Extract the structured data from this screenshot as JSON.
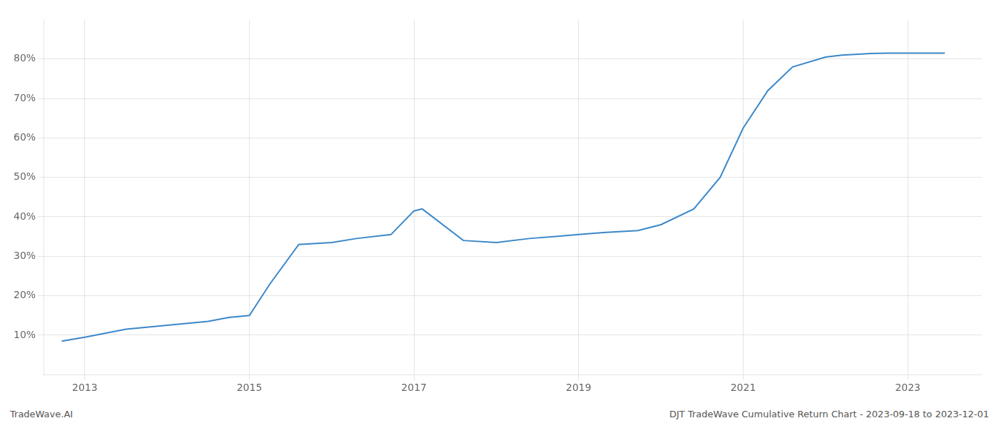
{
  "chart_data": {
    "type": "line",
    "x": [
      2012.72,
      2013.0,
      2013.5,
      2014.0,
      2014.5,
      2014.75,
      2015.0,
      2015.25,
      2015.6,
      2016.0,
      2016.3,
      2016.72,
      2017.0,
      2017.1,
      2017.6,
      2018.0,
      2018.4,
      2018.72,
      2019.0,
      2019.3,
      2019.72,
      2020.0,
      2020.4,
      2020.72,
      2021.0,
      2021.3,
      2021.6,
      2022.0,
      2022.2,
      2022.4,
      2022.55,
      2022.75,
      2023.0,
      2023.45
    ],
    "values": [
      8.5,
      9.5,
      11.5,
      12.5,
      13.5,
      14.5,
      15.0,
      23.0,
      33.0,
      33.5,
      34.5,
      35.5,
      41.5,
      42.0,
      34.0,
      33.5,
      34.5,
      35.0,
      35.5,
      36.0,
      36.5,
      38.0,
      42.0,
      50.0,
      62.5,
      72.0,
      78.0,
      80.5,
      81.0,
      81.2,
      81.4,
      81.5,
      81.5,
      81.5
    ],
    "color": "#3a87c8",
    "xlim": [
      2012.5,
      2023.9
    ],
    "xticks": [
      2013,
      2015,
      2017,
      2019,
      2021,
      2023
    ],
    "ylim": [
      0,
      90
    ],
    "yticks": [
      {
        "value": 10,
        "label": "10%"
      },
      {
        "value": 20,
        "label": "20%"
      },
      {
        "value": 30,
        "label": "30%"
      },
      {
        "value": 40,
        "label": "40%"
      },
      {
        "value": 50,
        "label": "50%"
      },
      {
        "value": 60,
        "label": "60%"
      },
      {
        "value": 70,
        "label": "70%"
      },
      {
        "value": 80,
        "label": "80%"
      }
    ],
    "grid": true,
    "annotations": [
      "TradeWave.AI",
      "DJT TradeWave Cumulative Return Chart - 2023-09-18 to 2023-12-01"
    ]
  }
}
